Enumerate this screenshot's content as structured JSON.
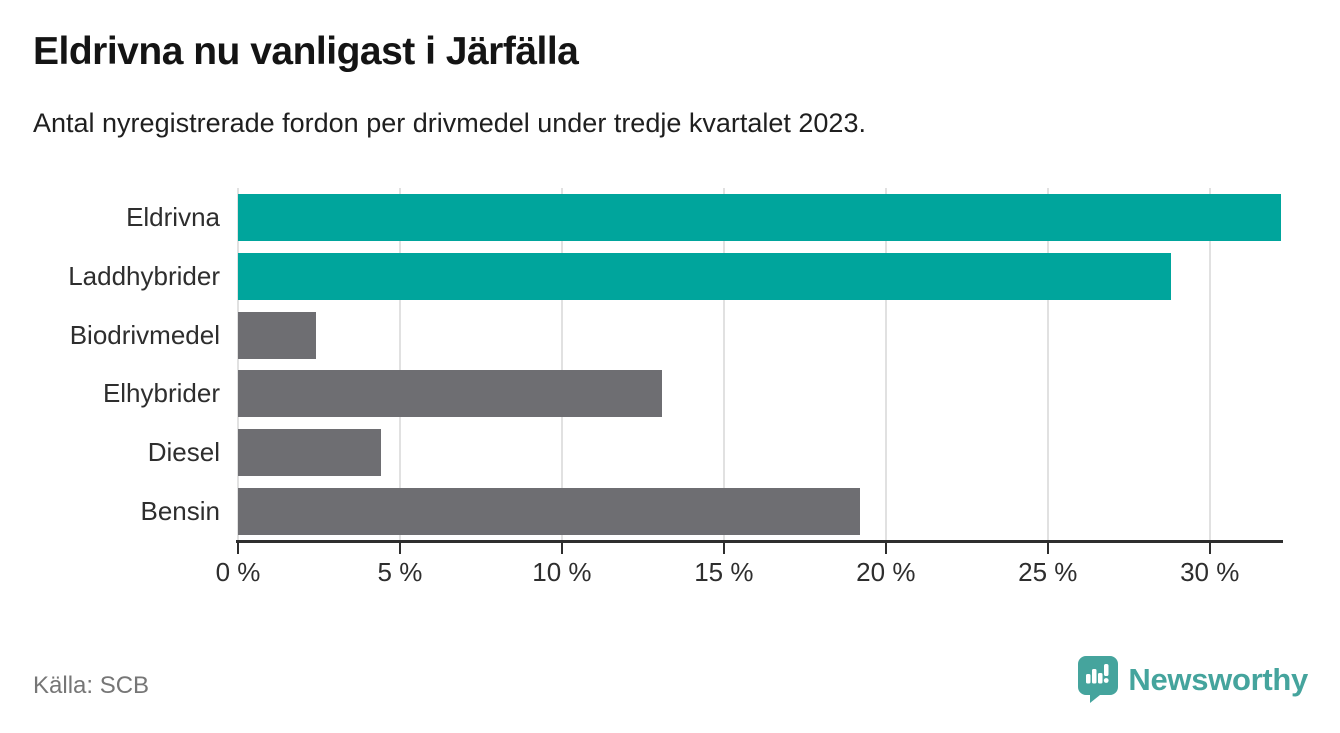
{
  "header": {
    "title": "Eldrivna nu vanligast i Järfälla",
    "subtitle": "Antal nyregistrerade fordon per drivmedel under tredje kvartalet 2023."
  },
  "footer": {
    "source": "Källa: SCB",
    "brand_name": "Newsworthy"
  },
  "colors": {
    "highlight_bar": "#00a59c",
    "default_bar": "#6e6e72",
    "gridline": "#e1e1e1",
    "axis": "#2e2e2e",
    "brand_teal": "#45a49d"
  },
  "chart_data": {
    "type": "bar",
    "orientation": "horizontal",
    "title": "Eldrivna nu vanligast i Järfälla",
    "subtitle": "Antal nyregistrerade fordon per drivmedel under tredje kvartalet 2023.",
    "categories": [
      "Eldrivna",
      "Laddhybrider",
      "Biodrivmedel",
      "Elhybrider",
      "Diesel",
      "Bensin"
    ],
    "values": [
      32.2,
      28.8,
      2.4,
      13.1,
      4.4,
      19.2
    ],
    "unit": "%",
    "bar_colors": [
      "#00a59c",
      "#00a59c",
      "#6e6e72",
      "#6e6e72",
      "#6e6e72",
      "#6e6e72"
    ],
    "x_ticks": [
      0,
      5,
      10,
      15,
      20,
      25,
      30
    ],
    "x_tick_labels": [
      "0 %",
      "5 %",
      "10 %",
      "15 %",
      "20 %",
      "25 %",
      "30 %"
    ],
    "xlim": [
      0,
      32.2
    ],
    "grid": "vertical",
    "legend": "none"
  }
}
